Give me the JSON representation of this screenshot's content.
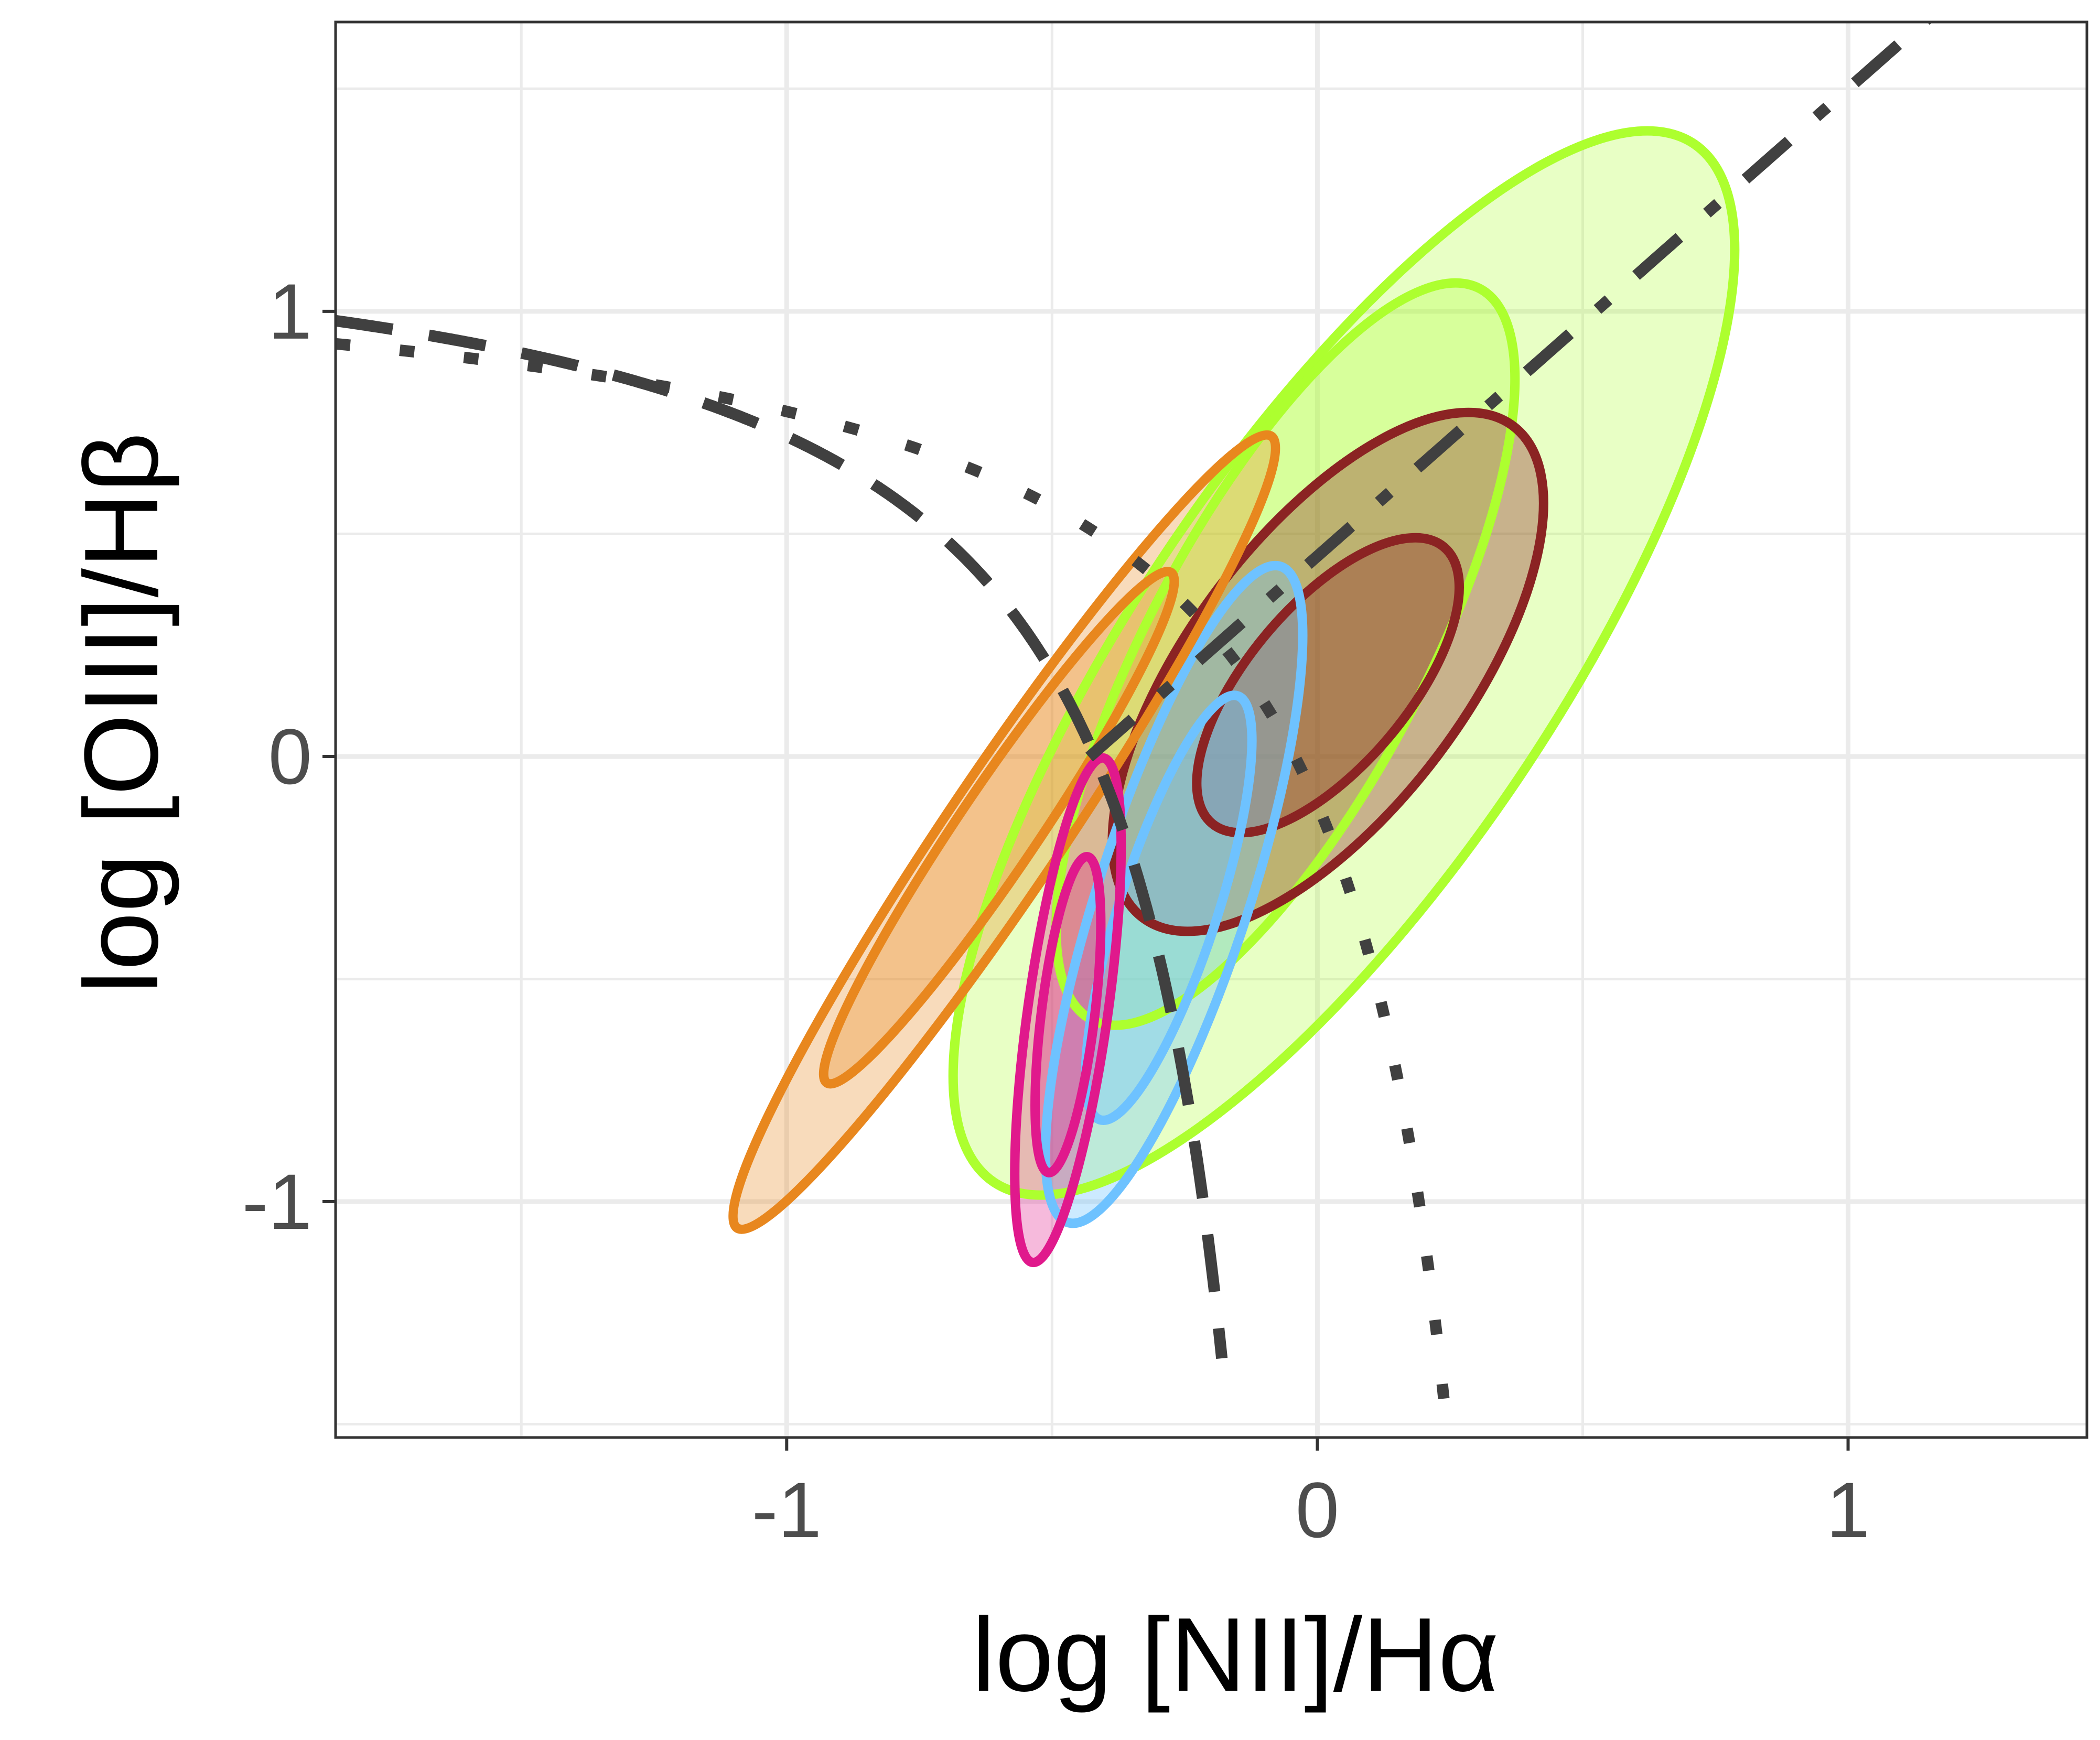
{
  "chart_data": {
    "type": "scatter",
    "xlabel": "log [NII]/Hα",
    "ylabel": "log [OIII]/Hβ",
    "xlim": [
      -1.85,
      1.45
    ],
    "ylim": [
      -1.53,
      1.65
    ],
    "x_ticks": [
      -1,
      0,
      1
    ],
    "x_tick_labels": [
      "-1",
      "0",
      "1"
    ],
    "y_ticks": [
      -1,
      0,
      1
    ],
    "y_tick_labels": [
      "-1",
      "0",
      "1"
    ],
    "grid": true,
    "legend": "none",
    "demarcation_lines": [
      {
        "style": "dashed",
        "formula": "0.61/(x-0.05)+1.3",
        "x_range": [
          -1.85,
          -0.18
        ]
      },
      {
        "style": "dotted",
        "formula": "0.61/(x-0.47)+1.19",
        "x_range": [
          -1.85,
          0.24
        ]
      },
      {
        "style": "dashdot",
        "formula": "1.05*x+0.45",
        "x_range": [
          -0.43,
          1.15
        ]
      }
    ],
    "contour_series": [
      {
        "color": "#adff2f",
        "fill_opacity": 0.28,
        "ellipses": [
          {
            "cx": 0.05,
            "cy": 0.21,
            "rx": 1.18,
            "ry": 0.47,
            "angle_deg": 56
          },
          {
            "cx": -0.06,
            "cy": 0.23,
            "rx": 0.78,
            "ry": 0.31,
            "angle_deg": 62
          }
        ]
      },
      {
        "color": "#8b2323",
        "fill_opacity": 0.35,
        "ellipses": [
          {
            "cx": 0.02,
            "cy": 0.19,
            "rx": 0.58,
            "ry": 0.31,
            "angle_deg": 53
          },
          {
            "cx": 0.02,
            "cy": 0.16,
            "rx": 0.34,
            "ry": 0.18,
            "angle_deg": 50
          }
        ]
      },
      {
        "color": "#6ec2ff",
        "fill_opacity": 0.35,
        "ellipses": [
          {
            "cx": -0.27,
            "cy": -0.31,
            "rx": 0.65,
            "ry": 0.17,
            "angle_deg": 72
          },
          {
            "cx": -0.28,
            "cy": -0.34,
            "rx": 0.42,
            "ry": 0.11,
            "angle_deg": 72
          }
        ]
      },
      {
        "color": "#e8871e",
        "fill_opacity": 0.3,
        "ellipses": [
          {
            "cx": -0.59,
            "cy": -0.17,
            "rx": 0.9,
            "ry": 0.13,
            "angle_deg": 56
          },
          {
            "cx": -0.6,
            "cy": -0.16,
            "rx": 0.58,
            "ry": 0.09,
            "angle_deg": 56
          }
        ]
      },
      {
        "color": "#e0198c",
        "fill_opacity": 0.3,
        "ellipses": [
          {
            "cx": -0.47,
            "cy": -0.57,
            "rx": 0.48,
            "ry": 0.09,
            "angle_deg": 82
          },
          {
            "cx": -0.47,
            "cy": -0.58,
            "rx": 0.3,
            "ry": 0.06,
            "angle_deg": 83
          }
        ]
      }
    ]
  }
}
